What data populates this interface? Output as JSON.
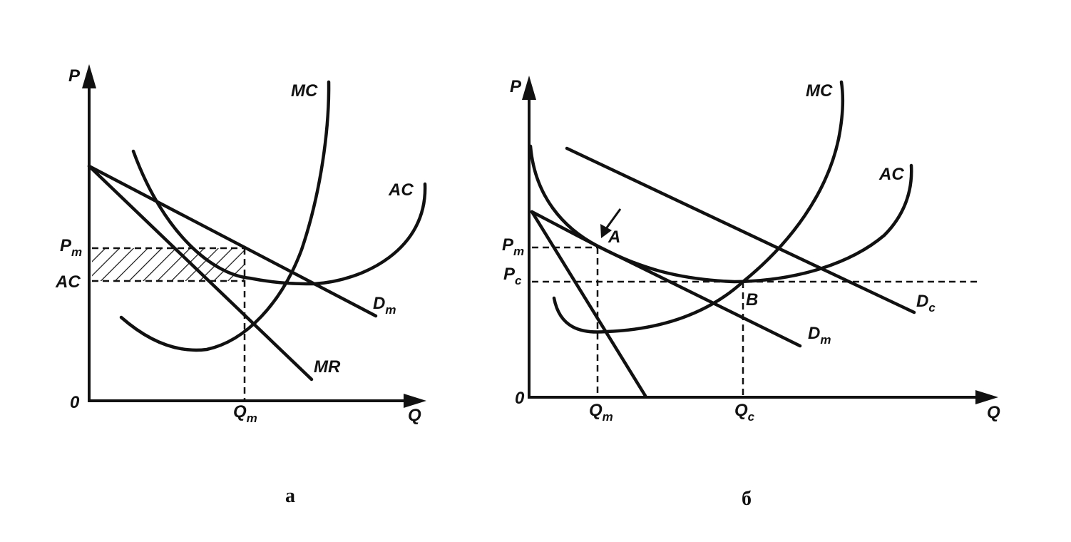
{
  "panel_a": {
    "axis_y": "P",
    "axis_x": "Q",
    "origin": "0",
    "curves": {
      "mc": "MC",
      "ac": "AC",
      "mr": "MR"
    },
    "demand": {
      "main": "D",
      "sub": "m"
    },
    "price_tick": {
      "main": "P",
      "sub": "m"
    },
    "cost_tick": "AC",
    "quantity_tick": {
      "main": "Q",
      "sub": "m"
    },
    "caption": "а"
  },
  "panel_b": {
    "axis_y": "P",
    "axis_x": "Q",
    "origin": "0",
    "curves": {
      "mc": "MC",
      "ac": "AC"
    },
    "demand_m": {
      "main": "D",
      "sub": "m"
    },
    "demand_c": {
      "main": "D",
      "sub": "c"
    },
    "price_m": {
      "main": "P",
      "sub": "m"
    },
    "price_c": {
      "main": "P",
      "sub": "c"
    },
    "quantity_m": {
      "main": "Q",
      "sub": "m"
    },
    "quantity_c": {
      "main": "Q",
      "sub": "c"
    },
    "point_a": "A",
    "point_b": "B",
    "caption": "б"
  },
  "colors": {
    "ink": "#111111",
    "background": "#ffffff"
  }
}
